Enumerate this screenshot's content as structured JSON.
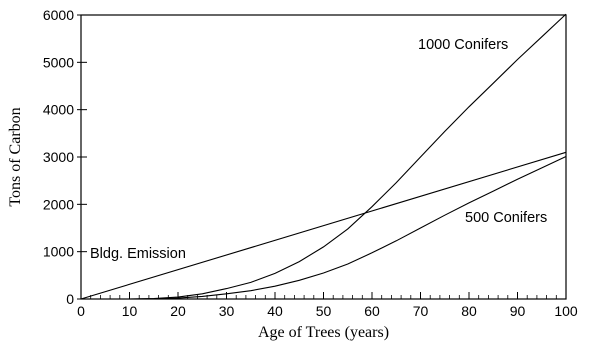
{
  "chart_data": {
    "type": "line",
    "xlabel": "Age of Trees (years)",
    "ylabel": "Tons of Carbon",
    "xlim": [
      0,
      100
    ],
    "ylim": [
      0,
      6000
    ],
    "x_ticks": [
      0,
      10,
      20,
      30,
      40,
      50,
      60,
      70,
      80,
      90,
      100
    ],
    "x_tick_labels": [
      "0",
      "10",
      "20",
      "30",
      "40",
      "50",
      "60",
      "70",
      "80",
      "90",
      "100"
    ],
    "y_ticks": [
      0,
      1000,
      2000,
      3000,
      4000,
      5000,
      6000
    ],
    "y_tick_labels": [
      "0",
      "1000",
      "2000",
      "3000",
      "4000",
      "5000",
      "6000"
    ],
    "grid": false,
    "series": [
      {
        "name": "1000 Conifers",
        "x": [
          0,
          10,
          15,
          20,
          25,
          30,
          35,
          40,
          45,
          50,
          55,
          60,
          65,
          70,
          75,
          80,
          85,
          90,
          95,
          100
        ],
        "values": [
          0,
          0,
          10,
          40,
          110,
          220,
          350,
          540,
          790,
          1100,
          1480,
          1950,
          2460,
          3000,
          3540,
          4060,
          4560,
          5060,
          5540,
          6020
        ]
      },
      {
        "name": "500 Conifers",
        "x": [
          0,
          10,
          15,
          20,
          25,
          30,
          35,
          40,
          45,
          50,
          55,
          60,
          65,
          70,
          75,
          80,
          85,
          90,
          95,
          100
        ],
        "values": [
          0,
          0,
          5,
          20,
          55,
          110,
          175,
          270,
          395,
          550,
          740,
          975,
          1230,
          1500,
          1770,
          2030,
          2280,
          2530,
          2770,
          3010
        ]
      },
      {
        "name": "Bldg. Emission",
        "x": [
          0,
          100
        ],
        "values": [
          0,
          3100
        ]
      }
    ]
  }
}
